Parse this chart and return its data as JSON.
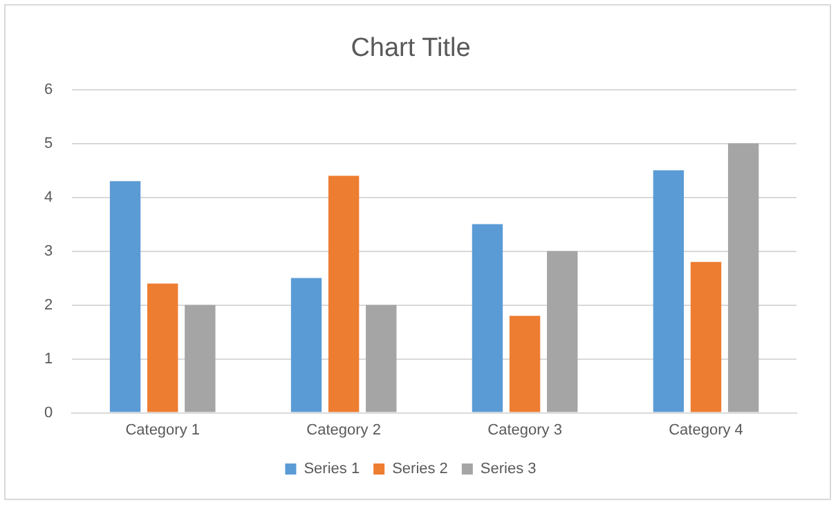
{
  "chart_data": {
    "type": "bar",
    "title": "Chart Title",
    "categories": [
      "Category 1",
      "Category 2",
      "Category 3",
      "Category 4"
    ],
    "series": [
      {
        "name": "Series 1",
        "color": "#5b9bd5",
        "values": [
          4.3,
          2.5,
          3.5,
          4.5
        ]
      },
      {
        "name": "Series 2",
        "color": "#ed7d31",
        "values": [
          2.4,
          4.4,
          1.8,
          2.8
        ]
      },
      {
        "name": "Series 3",
        "color": "#a5a5a5",
        "values": [
          2,
          2,
          3,
          5
        ]
      }
    ],
    "ylim": [
      0,
      6
    ],
    "yticks": [
      0,
      1,
      2,
      3,
      4,
      5,
      6
    ],
    "grid": "y",
    "legend": "bottom"
  }
}
